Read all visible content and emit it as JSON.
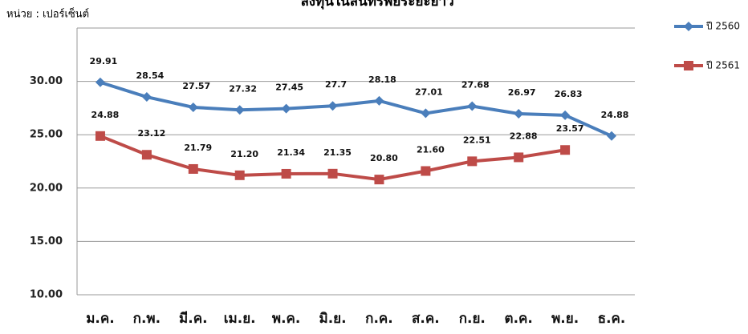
{
  "chart_data": {
    "type": "line",
    "title": "ลงทุนในสินทรัพย์ระยะยาว",
    "y_label": "หน่วย : เปอร์เซ็นต์",
    "categories": [
      "ม.ค.",
      "ก.พ.",
      "มี.ค.",
      "เม.ย.",
      "พ.ค.",
      "มิ.ย.",
      "ก.ค.",
      "ส.ค.",
      "ก.ย.",
      "ต.ค.",
      "พ.ย.",
      "ธ.ค."
    ],
    "series": [
      {
        "name": "ปี 2560",
        "color": "#4a7ebb",
        "marker": "diamond",
        "values": [
          29.91,
          28.54,
          27.57,
          27.32,
          27.45,
          27.7,
          28.18,
          27.01,
          27.68,
          26.97,
          26.83,
          24.88
        ]
      },
      {
        "name": "ปี 2561",
        "color": "#be4b48",
        "marker": "square",
        "values": [
          24.88,
          23.12,
          21.79,
          21.2,
          21.34,
          21.35,
          20.8,
          21.6,
          22.51,
          22.88,
          23.57,
          null
        ],
        "value_labels": [
          "24.88",
          "23.12",
          "21.79",
          "21.20",
          "21.34",
          "21.35",
          "20.80",
          "21.60",
          "22.51",
          "22.88",
          "23.57",
          null
        ]
      }
    ],
    "ylim": [
      10,
      35
    ],
    "yticks": [
      {
        "value": 10,
        "label": "10.00"
      },
      {
        "value": 15,
        "label": "15.00"
      },
      {
        "value": 20,
        "label": "20.00"
      },
      {
        "value": 25,
        "label": "25.00"
      },
      {
        "value": 30,
        "label": "30.00"
      }
    ],
    "grid": true
  }
}
